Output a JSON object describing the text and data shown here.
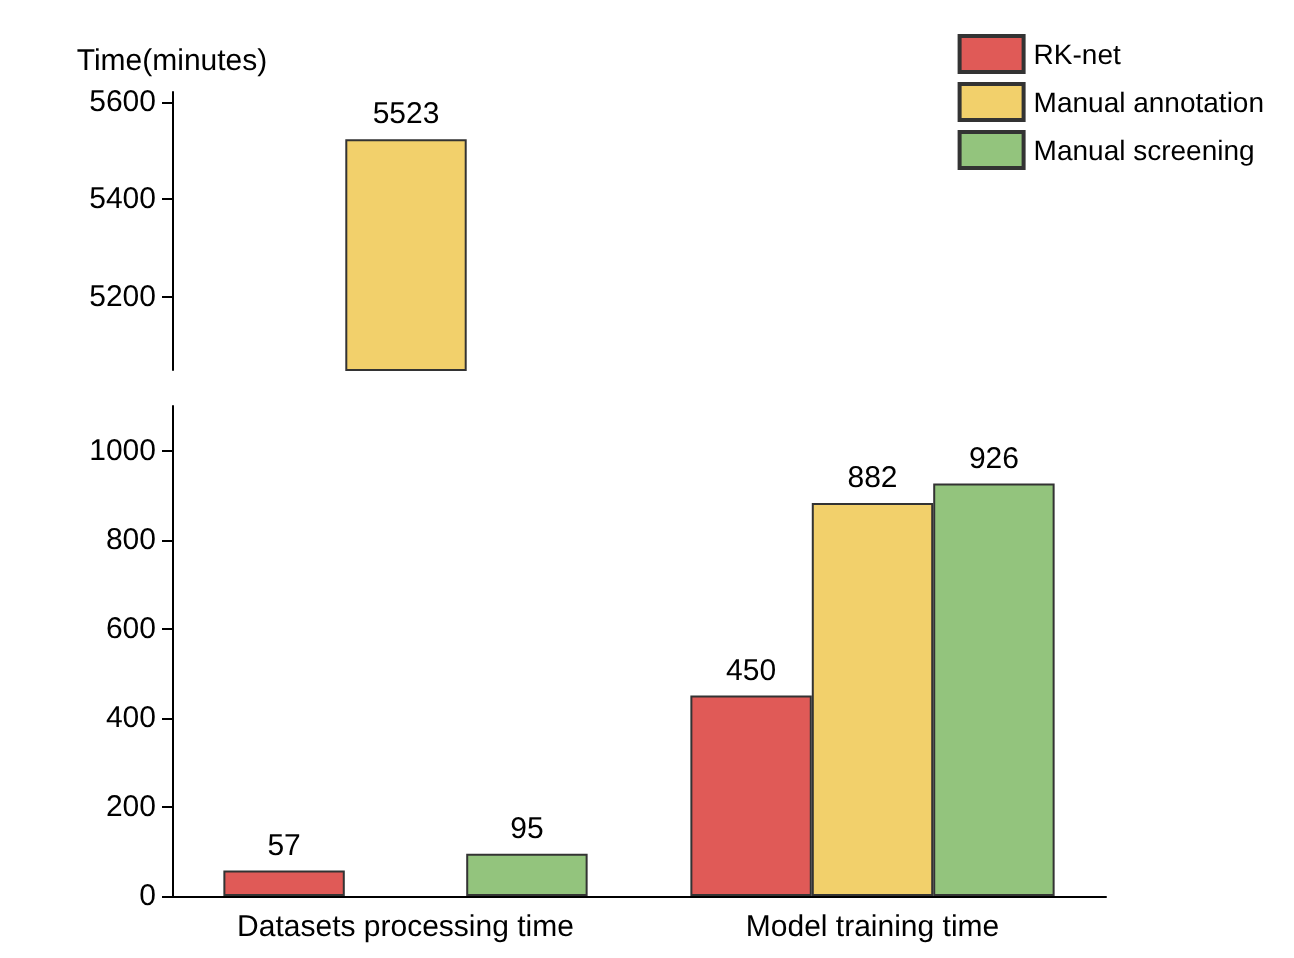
{
  "chart_data": [
    {
      "type": "bar",
      "ylabel": "Time(minutes)",
      "categories": [
        null
      ],
      "ylim": [
        5050,
        5620
      ],
      "yticks": [
        5200,
        5400,
        5600
      ],
      "data_labels": true,
      "series": [
        {
          "color": "#f2d06b",
          "values": [
            5523
          ]
        }
      ]
    },
    {
      "type": "bar",
      "categories": [
        "Datasets processing time",
        "Model training time"
      ],
      "ylim": [
        0,
        1100
      ],
      "yticks": [
        0,
        200,
        400,
        600,
        800,
        1000
      ],
      "legend": "top right",
      "data_labels": true,
      "series": [
        {
          "name": "RK-net",
          "color": "#e05a57",
          "values": [
            57,
            450
          ]
        },
        {
          "name": "Manual annotation",
          "color": "#f2d06b",
          "values": [
            null,
            882
          ]
        },
        {
          "name": "Manual screening",
          "color": "#93c47d",
          "values": [
            95,
            926
          ]
        }
      ]
    }
  ]
}
